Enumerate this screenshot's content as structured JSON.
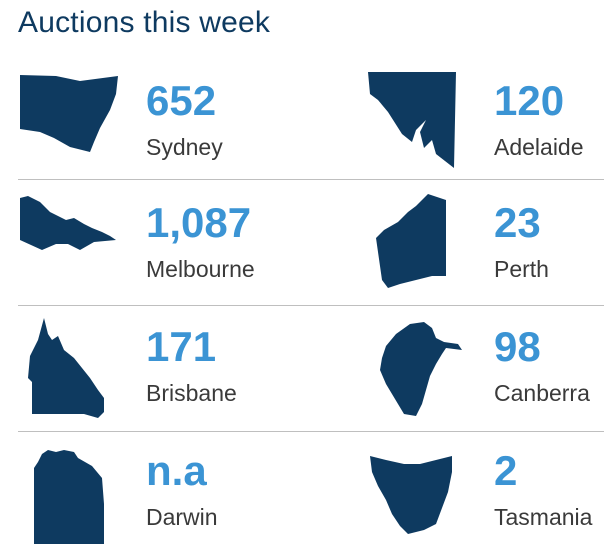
{
  "title": "Auctions this week",
  "colors": {
    "map_fill": "#0e3a60",
    "value": "#3b94d4",
    "city": "#3a3a3a",
    "divider": "#bfbfbf"
  },
  "cities": [
    {
      "name": "Sydney",
      "value": "652",
      "icon": "nsw-state-map-icon"
    },
    {
      "name": "Adelaide",
      "value": "120",
      "icon": "sa-state-map-icon"
    },
    {
      "name": "Melbourne",
      "value": "1,087",
      "icon": "vic-state-map-icon"
    },
    {
      "name": "Perth",
      "value": "23",
      "icon": "wa-state-map-icon"
    },
    {
      "name": "Brisbane",
      "value": "171",
      "icon": "qld-state-map-icon"
    },
    {
      "name": "Canberra",
      "value": "98",
      "icon": "act-territory-map-icon"
    },
    {
      "name": "Darwin",
      "value": "n.a",
      "icon": "nt-territory-map-icon"
    },
    {
      "name": "Tasmania",
      "value": "2",
      "icon": "tas-state-map-icon"
    }
  ]
}
